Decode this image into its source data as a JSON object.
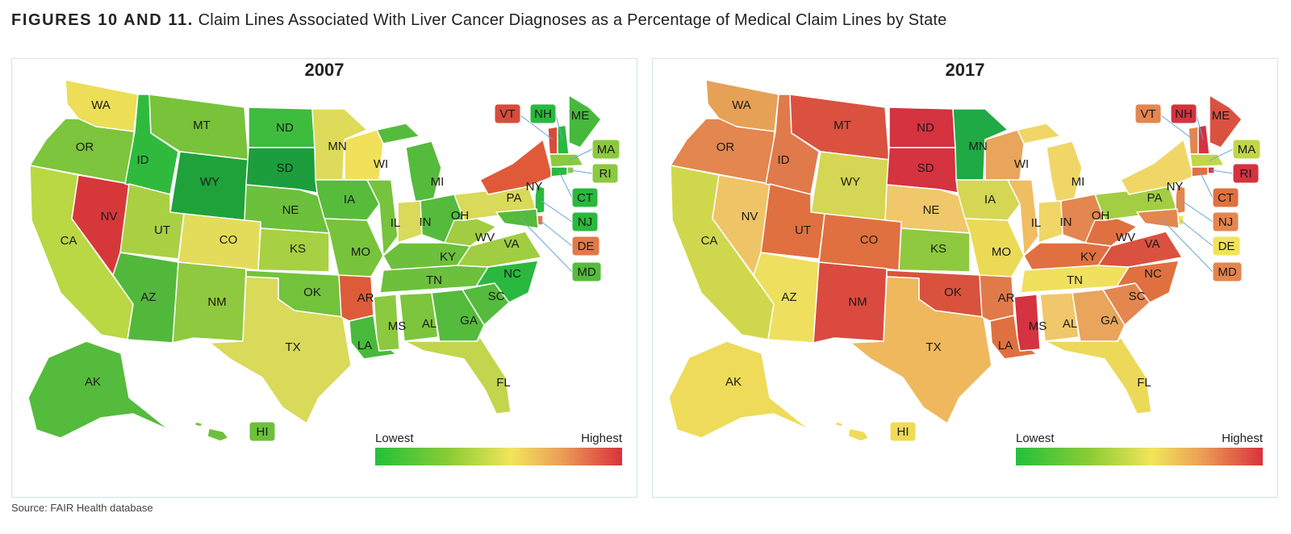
{
  "figure": {
    "title_lead": "FIGURES 10 AND 11.",
    "title_rest": " Claim Lines Associated With Liver Cancer Diagnoses as a Percentage of Medical Claim Lines by State",
    "source": "Source: FAIR Health database"
  },
  "legend": {
    "low": "Lowest",
    "high": "Highest"
  },
  "panels": [
    {
      "year": "2007",
      "colors": {
        "WA": "#ecde56",
        "OR": "#7cc53c",
        "CA": "#bad744",
        "NV": "#d6383a",
        "ID": "#2fba3e",
        "MT": "#78c33a",
        "WY": "#1fa23a",
        "UT": "#a9d043",
        "CO": "#e3dc5b",
        "AZ": "#52b83c",
        "NM": "#8fc93f",
        "ND": "#3ebc3e",
        "SD": "#1c9e3c",
        "NE": "#6cc03c",
        "KS": "#a8d043",
        "OK": "#73c23c",
        "TX": "#d9d95a",
        "MN": "#dedb5a",
        "IA": "#57bb3c",
        "MO": "#78c33c",
        "AR": "#de5b3a",
        "LA": "#49b93c",
        "WI": "#f1e05a",
        "IL": "#77c33c",
        "MI": "#55bb3c",
        "IN": "#d9d95a",
        "OH": "#55bb3c",
        "KY": "#6cc03c",
        "TN": "#6cc03c",
        "MS": "#8bc93f",
        "AL": "#7cc53c",
        "GA": "#55bb3c",
        "FL": "#c1d64c",
        "SC": "#55bb3c",
        "NC": "#2ab83e",
        "VA": "#a0cd42",
        "WV": "#a0cd42",
        "PA": "#d9d95a",
        "NY": "#e05a3a",
        "ME": "#46b93c",
        "VT": "#d84b3b",
        "NH": "#2ab83e",
        "MA": "#8bc93f",
        "RI": "#8bc93f",
        "CT": "#2ab83e",
        "NJ": "#2ab83e",
        "DE": "#e07a4a",
        "MD": "#55bb3c",
        "AK": "#55bb3c",
        "HI": "#6cc03c"
      }
    },
    {
      "year": "2017",
      "colors": {
        "WA": "#e6a157",
        "OR": "#e3864f",
        "CA": "#cfd84d",
        "NV": "#efc466",
        "ID": "#e07a4a",
        "MT": "#da5140",
        "WY": "#d5d653",
        "UT": "#e0703f",
        "CO": "#e0703f",
        "AZ": "#eee05e",
        "NM": "#da4a3f",
        "ND": "#d4333f",
        "SD": "#d4333f",
        "NE": "#f0c76a",
        "KS": "#8ec93f",
        "OK": "#d9523d",
        "TX": "#efb85c",
        "MN": "#1faa46",
        "IA": "#d5d653",
        "MO": "#eada56",
        "AR": "#e07a4a",
        "LA": "#e0703f",
        "WI": "#e8a55b",
        "IL": "#efbd62",
        "MI": "#f0d666",
        "IN": "#f0d666",
        "OH": "#e3864f",
        "KY": "#e0703f",
        "TN": "#f0e05e",
        "MS": "#d4333f",
        "AL": "#f0c76a",
        "GA": "#e8a55b",
        "FL": "#ecd95a",
        "SC": "#e3864f",
        "NC": "#e0703f",
        "VA": "#da5140",
        "WV": "#e0703f",
        "PA": "#a3ce44",
        "NY": "#f0d666",
        "ME": "#da5140",
        "VT": "#e3864f",
        "NH": "#d4333f",
        "MA": "#c2d64a",
        "RI": "#d4333f",
        "CT": "#e0703f",
        "NJ": "#e3864f",
        "DE": "#f1e35a",
        "MD": "#e3864f",
        "AK": "#eedb5a",
        "HI": "#eedb5a"
      }
    }
  ],
  "states": [
    {
      "abbr": "WA"
    },
    {
      "abbr": "OR"
    },
    {
      "abbr": "CA"
    },
    {
      "abbr": "NV"
    },
    {
      "abbr": "ID"
    },
    {
      "abbr": "MT"
    },
    {
      "abbr": "WY"
    },
    {
      "abbr": "UT"
    },
    {
      "abbr": "CO"
    },
    {
      "abbr": "AZ"
    },
    {
      "abbr": "NM"
    },
    {
      "abbr": "ND"
    },
    {
      "abbr": "SD"
    },
    {
      "abbr": "NE"
    },
    {
      "abbr": "KS"
    },
    {
      "abbr": "OK"
    },
    {
      "abbr": "TX"
    },
    {
      "abbr": "MN"
    },
    {
      "abbr": "IA"
    },
    {
      "abbr": "MO"
    },
    {
      "abbr": "AR"
    },
    {
      "abbr": "LA"
    },
    {
      "abbr": "WI"
    },
    {
      "abbr": "IL"
    },
    {
      "abbr": "MI"
    },
    {
      "abbr": "IN"
    },
    {
      "abbr": "OH"
    },
    {
      "abbr": "KY"
    },
    {
      "abbr": "TN"
    },
    {
      "abbr": "MS"
    },
    {
      "abbr": "AL"
    },
    {
      "abbr": "GA"
    },
    {
      "abbr": "FL"
    },
    {
      "abbr": "SC"
    },
    {
      "abbr": "NC"
    },
    {
      "abbr": "VA"
    },
    {
      "abbr": "WV"
    },
    {
      "abbr": "PA"
    },
    {
      "abbr": "NY"
    },
    {
      "abbr": "ME"
    },
    {
      "abbr": "AK"
    },
    {
      "abbr": "HI"
    },
    {
      "abbr": "VT"
    },
    {
      "abbr": "NH"
    },
    {
      "abbr": "MA"
    },
    {
      "abbr": "RI"
    },
    {
      "abbr": "CT"
    },
    {
      "abbr": "NJ"
    },
    {
      "abbr": "DE"
    },
    {
      "abbr": "MD"
    }
  ]
}
